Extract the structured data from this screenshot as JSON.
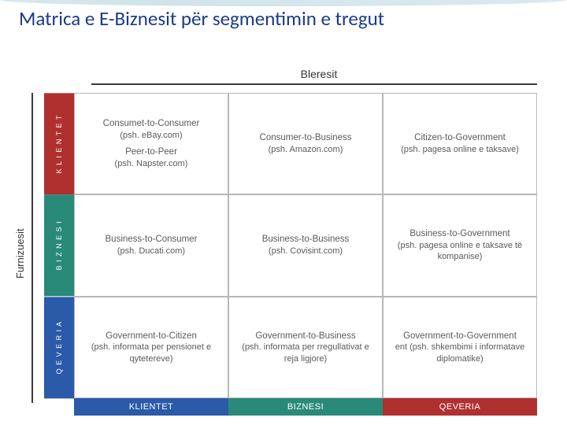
{
  "title": {
    "text": "Matrica e E-Biznesit për segmentimin e tregut",
    "color": "#1a3a8a",
    "fontsize_pt": 25
  },
  "axis": {
    "top": "Bleresit",
    "left": "Furnizuesit",
    "rule_color": "#3a3a3a"
  },
  "row_headers": [
    {
      "label": "K L I E N T E T",
      "bg": "#b03030"
    },
    {
      "label": "B I Z N E S I",
      "bg": "#2a8a7a"
    },
    {
      "label": "Q E V E R I A",
      "bg": "#2a5aa8"
    }
  ],
  "col_footers": [
    {
      "label": "KLIENTET",
      "bg": "#2a5aa8"
    },
    {
      "label": "BIZNESI",
      "bg": "#2a8a7a"
    },
    {
      "label": "QEVERIA",
      "bg": "#b03030"
    }
  ],
  "cells": [
    [
      {
        "blocks": [
          {
            "title": "Consumet-to-Consumer",
            "example": "(psh. eBay.com)"
          },
          {
            "title": "Peer-to-Peer",
            "example": "(psh. Napster.com)"
          }
        ]
      },
      {
        "blocks": [
          {
            "title": "Consumer-to-Business",
            "example": "(psh. Amazon.com)"
          }
        ]
      },
      {
        "blocks": [
          {
            "title": "Citizen-to-Government",
            "example": "(psh. pagesa online e taksave)"
          }
        ]
      }
    ],
    [
      {
        "blocks": [
          {
            "title": "Business-to-Consumer",
            "example": "(psh. Ducati.com)"
          }
        ]
      },
      {
        "blocks": [
          {
            "title": "Business-to-Business",
            "example": "(psh. Covisint.com)"
          }
        ]
      },
      {
        "blocks": [
          {
            "title": "Business-to-Government",
            "example": "(psh. pagesa online e taksave të kompanise)"
          }
        ]
      }
    ],
    [
      {
        "blocks": [
          {
            "title": "Government-to-Citizen",
            "example": "(psh. informata per pensionet e qytetereve)"
          }
        ]
      },
      {
        "blocks": [
          {
            "title": "Government-to-Business",
            "example": "(psh. informata per rregullativat e reja ligjore)"
          }
        ]
      },
      {
        "blocks": [
          {
            "title": "Government-to-Government",
            "example": "ent (psh. shkembimi i informatave diplomatike)"
          }
        ]
      }
    ]
  ],
  "style": {
    "cell_border": "#b8b8b8",
    "cell_text_color": "#5a5a5a",
    "cell_fontsize_pt": 11,
    "header_text_color": "#ffffff",
    "background": "#ffffff"
  }
}
